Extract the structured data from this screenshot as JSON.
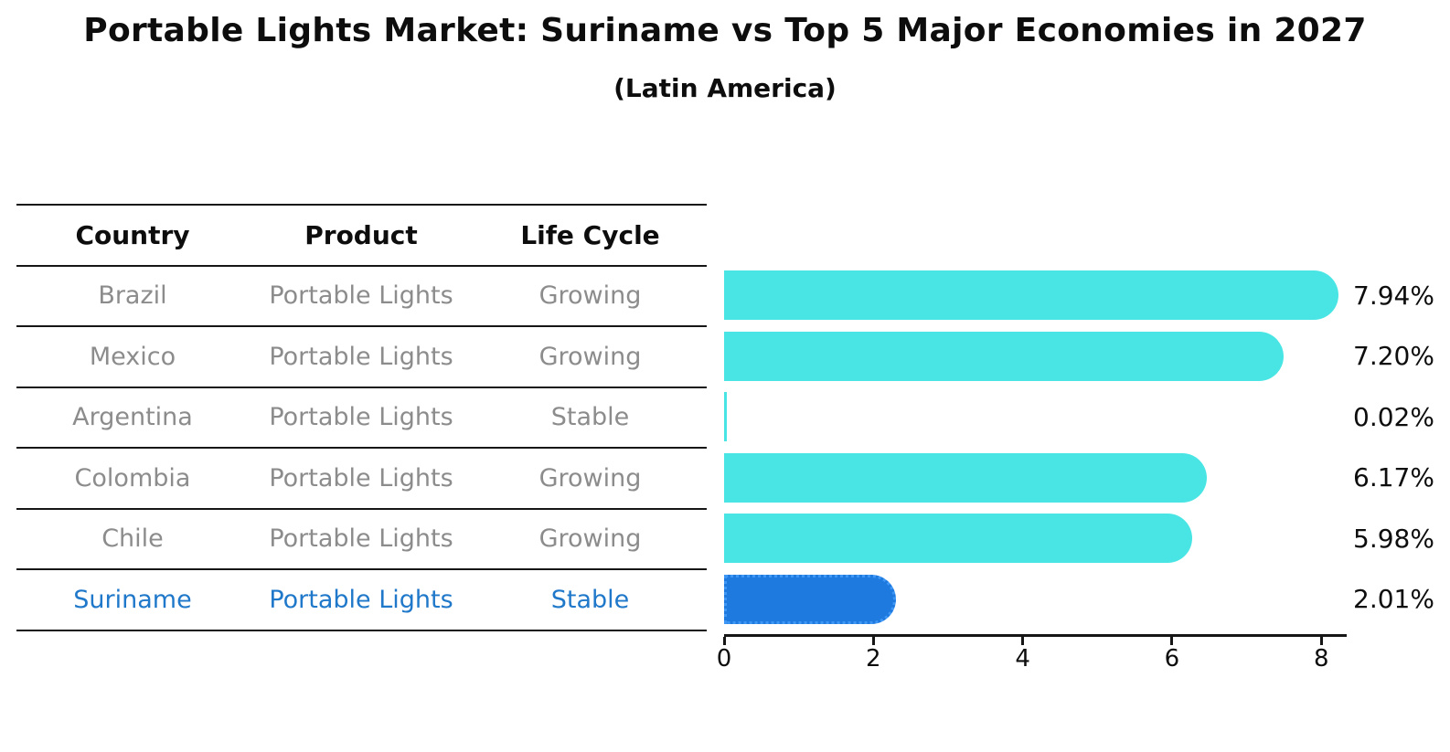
{
  "title": "Portable Lights Market: Suriname vs Top 5 Major Economies in 2027",
  "subtitle": "(Latin America)",
  "table": {
    "headers": [
      "Country",
      "Product",
      "Life Cycle"
    ],
    "rows": [
      {
        "country": "Brazil",
        "product": "Portable Lights",
        "life_cycle": "Growing",
        "value": 7.94,
        "value_label": "7.94%",
        "highlight": false
      },
      {
        "country": "Mexico",
        "product": "Portable Lights",
        "life_cycle": "Growing",
        "value": 7.2,
        "value_label": "7.20%",
        "highlight": false
      },
      {
        "country": "Argentina",
        "product": "Portable Lights",
        "life_cycle": "Stable",
        "value": 0.02,
        "value_label": "0.02%",
        "highlight": false
      },
      {
        "country": "Colombia",
        "product": "Portable Lights",
        "life_cycle": "Growing",
        "value": 6.17,
        "value_label": "6.17%",
        "highlight": false
      },
      {
        "country": "Chile",
        "product": "Portable Lights",
        "life_cycle": "Growing",
        "value": 5.98,
        "value_label": "5.98%",
        "highlight": false
      },
      {
        "country": "Suriname",
        "product": "Portable Lights",
        "life_cycle": "Stable",
        "value": 2.01,
        "value_label": "2.01%",
        "highlight": true
      }
    ]
  },
  "chart_data": {
    "type": "bar",
    "orientation": "horizontal",
    "title": "Portable Lights Market: Suriname vs Top 5 Major Economies in 2027",
    "subtitle": "(Latin America)",
    "categories": [
      "Brazil",
      "Mexico",
      "Argentina",
      "Colombia",
      "Chile",
      "Suriname"
    ],
    "values": [
      7.94,
      7.2,
      0.02,
      6.17,
      5.98,
      2.01
    ],
    "value_labels": [
      "7.94%",
      "7.20%",
      "0.02%",
      "6.17%",
      "5.98%",
      "2.01%"
    ],
    "xlabel": "",
    "ylabel": "",
    "x_ticks": [
      0,
      2,
      4,
      6,
      8
    ],
    "xlim": [
      0,
      8.33
    ],
    "grid": false,
    "legend": "none",
    "bar_color": "#48e5e4",
    "highlight_index": 5,
    "highlight_color": "#1f7ae0",
    "highlight_text_color": "#1f78c9"
  }
}
